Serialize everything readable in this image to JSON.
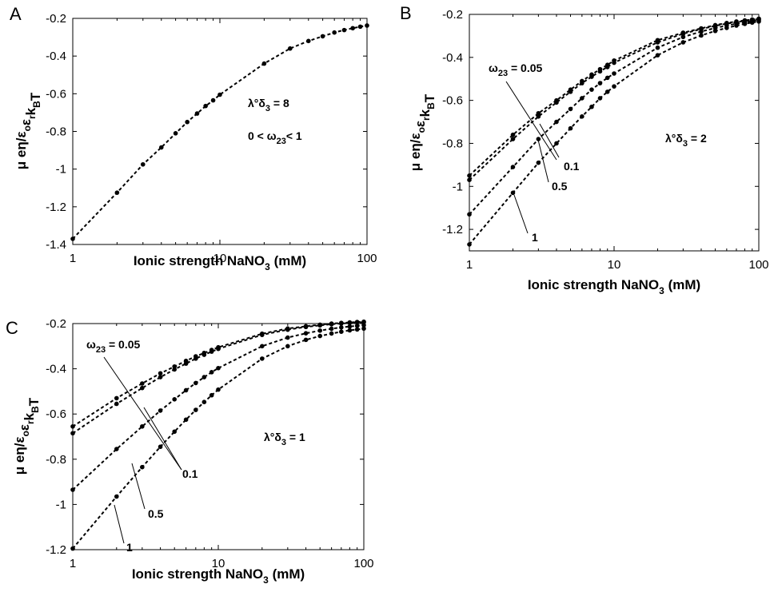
{
  "chart_data": [
    {
      "panel_label": "A",
      "type": "line",
      "xlabel": "Ionic strength NaNO",
      "xlabel_sub": "3",
      "xlabel_tail": " (mM)",
      "ylabel": "μ eη/ε ε k T",
      "ylabel_subs": [
        "o",
        "r",
        "B"
      ],
      "x_scale": "log",
      "xlim": [
        1,
        100
      ],
      "ylim": [
        -1.4,
        -0.2
      ],
      "xticks": [
        1,
        10,
        100
      ],
      "xtick_labels": [
        "1",
        "10",
        "100"
      ],
      "yticks": [
        -1.4,
        -1.2,
        -1,
        -0.8,
        -0.6,
        -0.4,
        -0.2
      ],
      "ytick_labels": [
        "-1.4",
        "-1.2",
        "-1",
        "-0.8",
        "-0.6",
        "-0.4",
        "-0.2"
      ],
      "x": [
        1,
        2,
        3,
        4,
        5,
        6,
        7,
        8,
        9,
        10,
        20,
        30,
        40,
        50,
        60,
        70,
        80,
        90,
        100
      ],
      "series": [
        {
          "values": [
            -1.37,
            -1.125,
            -0.975,
            -0.885,
            -0.81,
            -0.75,
            -0.705,
            -0.665,
            -0.635,
            -0.605,
            -0.44,
            -0.36,
            -0.32,
            -0.295,
            -0.275,
            -0.262,
            -0.252,
            -0.244,
            -0.238
          ]
        }
      ],
      "annotations": [
        {
          "text": "λ°δ = 8",
          "parts": [
            "λ°δ",
            "3",
            " = 8"
          ]
        },
        {
          "text": "0 < ω < 1",
          "parts": [
            "0 < ω",
            "23",
            "< 1"
          ]
        }
      ],
      "grid": false
    },
    {
      "panel_label": "B",
      "type": "line",
      "xlabel": "Ionic strength NaNO",
      "xlabel_sub": "3",
      "xlabel_tail": " (mM)",
      "ylabel": "μ eη/ε ε k T",
      "ylabel_subs": [
        "o",
        "r",
        "B"
      ],
      "x_scale": "log",
      "xlim": [
        1,
        100
      ],
      "ylim": [
        -1.3,
        -0.2
      ],
      "xticks": [
        1,
        10,
        100
      ],
      "xtick_labels": [
        "1",
        "10",
        "100"
      ],
      "yticks": [
        -1.2,
        -1,
        -0.8,
        -0.6,
        -0.4,
        -0.2
      ],
      "ytick_labels": [
        "-1.2",
        "-1",
        "-0.8",
        "-0.6",
        "-0.4",
        "-0.2"
      ],
      "x": [
        1,
        2,
        3,
        4,
        5,
        6,
        7,
        8,
        9,
        10,
        20,
        30,
        40,
        50,
        60,
        70,
        80,
        90,
        100
      ],
      "series": [
        {
          "name": "0.05",
          "values": [
            -0.95,
            -0.76,
            -0.66,
            -0.6,
            -0.55,
            -0.51,
            -0.48,
            -0.455,
            -0.435,
            -0.415,
            -0.32,
            -0.285,
            -0.265,
            -0.25,
            -0.24,
            -0.233,
            -0.228,
            -0.224,
            -0.22
          ]
        },
        {
          "name": "0.1",
          "values": [
            -0.97,
            -0.78,
            -0.675,
            -0.61,
            -0.56,
            -0.52,
            -0.49,
            -0.465,
            -0.445,
            -0.425,
            -0.33,
            -0.29,
            -0.268,
            -0.253,
            -0.243,
            -0.236,
            -0.23,
            -0.226,
            -0.222
          ]
        },
        {
          "name": "0.5",
          "values": [
            -1.13,
            -0.91,
            -0.78,
            -0.7,
            -0.64,
            -0.59,
            -0.55,
            -0.52,
            -0.495,
            -0.475,
            -0.355,
            -0.305,
            -0.28,
            -0.263,
            -0.252,
            -0.243,
            -0.236,
            -0.231,
            -0.227
          ]
        },
        {
          "name": "1",
          "values": [
            -1.27,
            -1.03,
            -0.89,
            -0.8,
            -0.73,
            -0.675,
            -0.63,
            -0.59,
            -0.56,
            -0.535,
            -0.39,
            -0.33,
            -0.298,
            -0.277,
            -0.263,
            -0.252,
            -0.244,
            -0.238,
            -0.233
          ]
        }
      ],
      "annotations": [
        {
          "text": "ω = 0.05",
          "parts": [
            "ω",
            "23",
            " = 0.05"
          ]
        },
        {
          "text": "0.1"
        },
        {
          "text": "0.5"
        },
        {
          "text": "1"
        },
        {
          "text": "λ°δ = 2",
          "parts": [
            "λ°δ",
            "3",
            " = 2"
          ]
        }
      ],
      "grid": false
    },
    {
      "panel_label": "C",
      "type": "line",
      "xlabel": "Ionic strength NaNO",
      "xlabel_sub": "3",
      "xlabel_tail": " (mM)",
      "ylabel": "μ eη/ε ε k T",
      "ylabel_subs": [
        "o",
        "r",
        "B"
      ],
      "x_scale": "log",
      "xlim": [
        1,
        100
      ],
      "ylim": [
        -1.2,
        -0.2
      ],
      "xticks": [
        1,
        10,
        100
      ],
      "xtick_labels": [
        "1",
        "10",
        "100"
      ],
      "yticks": [
        -1.2,
        -1,
        -0.8,
        -0.6,
        -0.4,
        -0.2
      ],
      "ytick_labels": [
        "-1.2",
        "-1",
        "-0.8",
        "-0.6",
        "-0.4",
        "-0.2"
      ],
      "x": [
        1,
        2,
        3,
        4,
        5,
        6,
        7,
        8,
        9,
        10,
        20,
        30,
        40,
        50,
        60,
        70,
        80,
        90,
        100
      ],
      "series": [
        {
          "name": "0.05",
          "values": [
            -0.655,
            -0.53,
            -0.465,
            -0.42,
            -0.39,
            -0.365,
            -0.345,
            -0.33,
            -0.317,
            -0.305,
            -0.245,
            -0.222,
            -0.212,
            -0.205,
            -0.2,
            -0.197,
            -0.195,
            -0.193,
            -0.192
          ]
        },
        {
          "name": "0.1",
          "values": [
            -0.685,
            -0.555,
            -0.485,
            -0.437,
            -0.403,
            -0.377,
            -0.355,
            -0.338,
            -0.324,
            -0.312,
            -0.25,
            -0.227,
            -0.215,
            -0.208,
            -0.203,
            -0.2,
            -0.197,
            -0.195,
            -0.194
          ]
        },
        {
          "name": "0.5",
          "values": [
            -0.935,
            -0.755,
            -0.655,
            -0.585,
            -0.535,
            -0.495,
            -0.463,
            -0.437,
            -0.415,
            -0.397,
            -0.3,
            -0.262,
            -0.243,
            -0.231,
            -0.223,
            -0.217,
            -0.213,
            -0.21,
            -0.207
          ]
        },
        {
          "name": "1",
          "values": [
            -1.195,
            -0.965,
            -0.835,
            -0.745,
            -0.678,
            -0.625,
            -0.582,
            -0.547,
            -0.517,
            -0.492,
            -0.355,
            -0.3,
            -0.272,
            -0.255,
            -0.244,
            -0.236,
            -0.23,
            -0.226,
            -0.222
          ]
        }
      ],
      "annotations": [
        {
          "text": "ω = 0.05",
          "parts": [
            "ω",
            "23",
            " = 0.05"
          ]
        },
        {
          "text": "0.1"
        },
        {
          "text": "0.5"
        },
        {
          "text": "1"
        },
        {
          "text": "λ°δ = 1",
          "parts": [
            "λ°δ",
            "3",
            " = 1"
          ]
        }
      ],
      "grid": false
    }
  ]
}
